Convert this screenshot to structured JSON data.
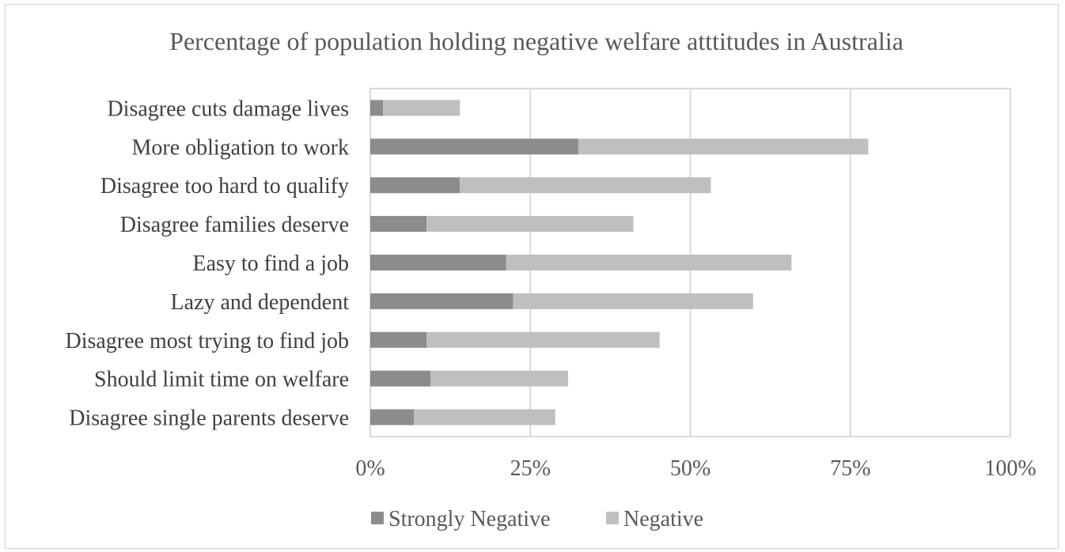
{
  "chart_data": {
    "type": "bar",
    "orientation": "horizontal",
    "stacked": true,
    "title": "Percentage of population holding negative welfare atttitudes in Australia",
    "xlabel": "",
    "ylabel": "",
    "xlim": [
      0,
      100
    ],
    "x_ticks": [
      "0%",
      "25%",
      "50%",
      "75%",
      "100%"
    ],
    "x_tick_values": [
      0,
      25,
      50,
      75,
      100
    ],
    "categories": [
      "Disagree cuts damage lives",
      "More obligation to work",
      "Disagree too hard to qualify",
      "Disagree families deserve",
      "Easy to find a job",
      "Lazy and dependent",
      "Disagree most trying to find job",
      "Should limit time on welfare",
      "Disagree single parents deserve"
    ],
    "series": [
      {
        "name": "Strongly Negative",
        "color": "#8c8c8c",
        "values": [
          2,
          32.5,
          14,
          8.8,
          21.2,
          22.3,
          8.8,
          9.4,
          6.8
        ]
      },
      {
        "name": "Negative",
        "color": "#bfbfbf",
        "values": [
          12,
          45.3,
          39.2,
          32.3,
          44.6,
          37.5,
          36.4,
          21.5,
          22.1
        ]
      }
    ],
    "grid": true,
    "legend_position": "bottom"
  }
}
